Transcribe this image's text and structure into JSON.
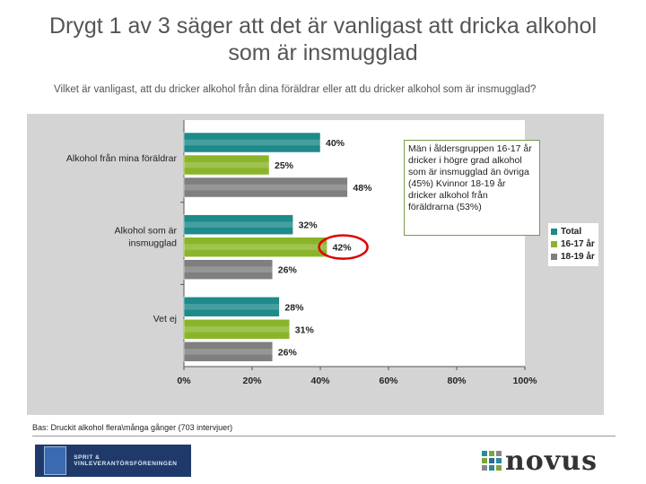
{
  "title": "Drygt 1 av 3 säger att det är vanligast att dricka alkohol som är insmugglad",
  "subtitle": "Vilket är vanligast, att du dricker alkohol från dina föräldrar eller att du dricker alkohol som är insmugglad?",
  "chart_data": {
    "type": "bar",
    "orientation": "horizontal",
    "categories": [
      "Alkohol från mina föräldrar",
      "Alkohol som är insmugglad",
      "Vet ej"
    ],
    "category_lines": [
      [
        "Alkohol från mina föräldrar"
      ],
      [
        "Alkohol som är",
        "insmugglad"
      ],
      [
        "Vet ej"
      ]
    ],
    "series": [
      {
        "name": "Total",
        "values": [
          40,
          32,
          28
        ],
        "color": "#1e8a8a"
      },
      {
        "name": "16-17 år",
        "values": [
          25,
          42,
          31
        ],
        "color": "#8ab52a"
      },
      {
        "name": "18-19 år",
        "values": [
          48,
          26,
          26
        ],
        "color": "#7f7f7f"
      }
    ],
    "value_labels": [
      [
        "40%",
        "32%",
        "28%"
      ],
      [
        "25%",
        "42%",
        "31%"
      ],
      [
        "48%",
        "26%",
        "26%"
      ]
    ],
    "xlim": [
      0,
      100
    ],
    "xticks": [
      "0%",
      "20%",
      "40%",
      "60%",
      "80%",
      "100%"
    ],
    "xtick_values": [
      0,
      20,
      40,
      60,
      80,
      100
    ],
    "highlight": {
      "series": 1,
      "category": 1,
      "color": "#e00000"
    },
    "legend_position": "right"
  },
  "annotation": "Män i åldersgruppen 16-17 år dricker i högre grad alkohol som är insmugglad än övriga (45%) Kvinnor 18-19 år dricker alkohol från föräldrarna (53%)",
  "footer": "Bas: Druckit alkohol flera\\många gånger (703 intervjuer)",
  "logos": {
    "left_text": "SPRIT & VINLEVERANTÖRSFÖRENINGEN",
    "right_text": "novus"
  },
  "colors": {
    "mark_1": "#2a8a9a",
    "mark_2": "#7aa838",
    "mark_3": "#888888",
    "mark_4": "#2a6a9a"
  }
}
